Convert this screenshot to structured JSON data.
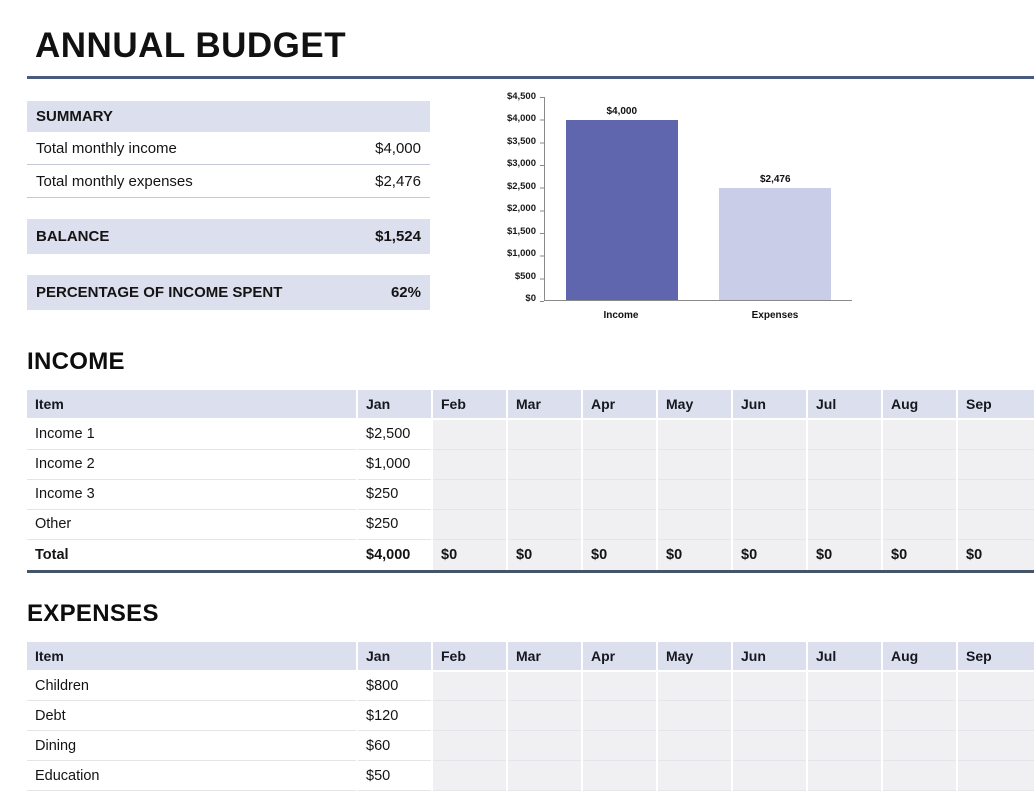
{
  "page": {
    "title": "ANNUAL BUDGET"
  },
  "summary": {
    "header": "SUMMARY",
    "rows": [
      {
        "label": "Total monthly income",
        "value": "$4,000"
      },
      {
        "label": "Total monthly expenses",
        "value": "$2,476"
      }
    ],
    "balance_label": "BALANCE",
    "balance_value": "$1,524",
    "percent_label": "PERCENTAGE OF INCOME SPENT",
    "percent_value": "62%"
  },
  "chart_data": {
    "type": "bar",
    "categories": [
      "Income",
      "Expenses"
    ],
    "values": [
      4000,
      2476
    ],
    "value_labels": [
      "$4,000",
      "$2,476"
    ],
    "title": "",
    "xlabel": "",
    "ylabel": "",
    "ylim": [
      0,
      4500
    ],
    "ytick_step": 500,
    "yticks": [
      "$4,500",
      "$4,000",
      "$3,500",
      "$3,000",
      "$2,500",
      "$2,000",
      "$1,500",
      "$1,000",
      "$500",
      "$0"
    ],
    "bar_colors": [
      "#5f66ad",
      "#c9cde7"
    ],
    "grid": false,
    "legend_position": "none"
  },
  "income": {
    "heading": "INCOME",
    "columns": [
      "Item",
      "Jan",
      "Feb",
      "Mar",
      "Apr",
      "May",
      "Jun",
      "Jul",
      "Aug",
      "Sep"
    ],
    "rows": [
      {
        "item": "Income 1",
        "values": [
          "$2,500",
          "",
          "",
          "",
          "",
          "",
          "",
          "",
          ""
        ]
      },
      {
        "item": "Income 2",
        "values": [
          "$1,000",
          "",
          "",
          "",
          "",
          "",
          "",
          "",
          ""
        ]
      },
      {
        "item": "Income 3",
        "values": [
          "$250",
          "",
          "",
          "",
          "",
          "",
          "",
          "",
          ""
        ]
      },
      {
        "item": "Other",
        "values": [
          "$250",
          "",
          "",
          "",
          "",
          "",
          "",
          "",
          ""
        ]
      }
    ],
    "total": {
      "item": "Total",
      "values": [
        "$4,000",
        "$0",
        "$0",
        "$0",
        "$0",
        "$0",
        "$0",
        "$0",
        "$0"
      ]
    }
  },
  "expenses": {
    "heading": "EXPENSES",
    "columns": [
      "Item",
      "Jan",
      "Feb",
      "Mar",
      "Apr",
      "May",
      "Jun",
      "Jul",
      "Aug",
      "Sep"
    ],
    "rows": [
      {
        "item": "Children",
        "values": [
          "$800",
          "",
          "",
          "",
          "",
          "",
          "",
          "",
          ""
        ]
      },
      {
        "item": "Debt",
        "values": [
          "$120",
          "",
          "",
          "",
          "",
          "",
          "",
          "",
          ""
        ]
      },
      {
        "item": "Dining",
        "values": [
          "$60",
          "",
          "",
          "",
          "",
          "",
          "",
          "",
          ""
        ]
      },
      {
        "item": "Education",
        "values": [
          "$50",
          "",
          "",
          "",
          "",
          "",
          "",
          "",
          ""
        ]
      }
    ]
  }
}
